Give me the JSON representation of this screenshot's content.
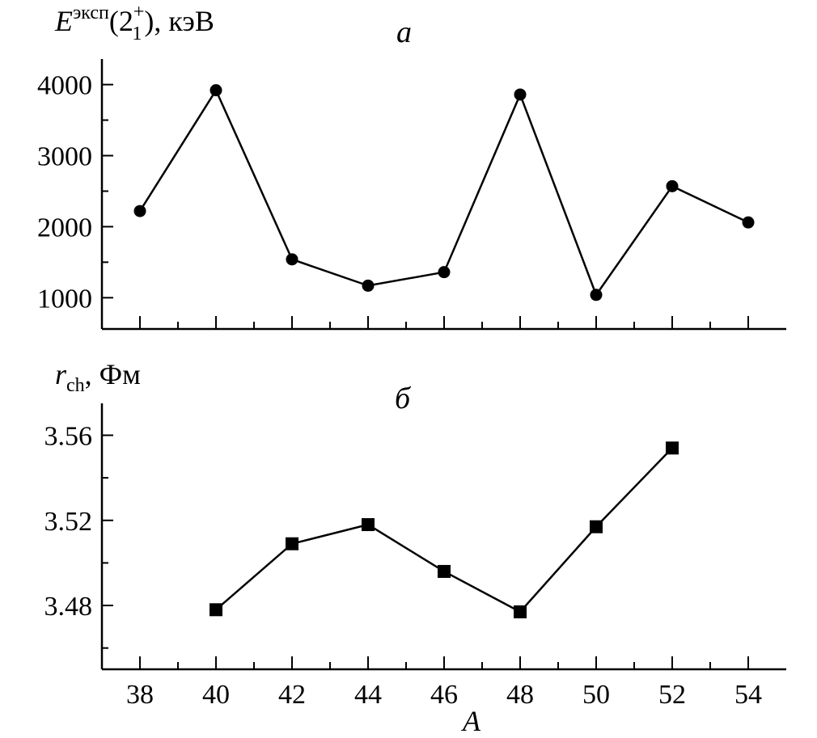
{
  "chart_data": [
    {
      "type": "line",
      "panel_label": "а",
      "ylabel": {
        "base": "E",
        "sup": "эксп",
        "paren_open": "(2",
        "level_sup": "+",
        "level_sub": "1",
        "paren_close": "),",
        "unit": " кэВ"
      },
      "x": [
        38,
        40,
        42,
        44,
        46,
        48,
        50,
        52,
        54
      ],
      "series": [
        {
          "marker": "circle",
          "values": [
            2220,
            3920,
            1540,
            1170,
            1360,
            3860,
            1040,
            2570,
            2060
          ]
        }
      ],
      "xlim": [
        37,
        55
      ],
      "ylim": [
        560,
        4360
      ],
      "yticks": [
        1000,
        2000,
        3000,
        4000
      ],
      "yminor": [
        1500,
        2500,
        3500
      ],
      "xticks": [
        38,
        40,
        42,
        44,
        46,
        48,
        50,
        52,
        54
      ],
      "xminor": [
        39,
        41,
        43,
        45,
        47,
        49,
        51,
        53
      ],
      "show_tick_labels_x": false,
      "grid": false
    },
    {
      "type": "line",
      "panel_label": "б",
      "ylabel": {
        "base": "r",
        "sub": "ch",
        "unit": ", Фм"
      },
      "x": [
        40,
        42,
        44,
        46,
        48,
        50,
        52
      ],
      "series": [
        {
          "marker": "square",
          "values": [
            3.478,
            3.509,
            3.518,
            3.496,
            3.477,
            3.517,
            3.554
          ]
        }
      ],
      "xlim": [
        37,
        55
      ],
      "ylim": [
        3.45,
        3.575
      ],
      "yticks": [
        "3.48",
        "3.52",
        "3.56"
      ],
      "yminor": [
        3.46,
        3.5,
        3.54
      ],
      "xticks": [
        "38",
        "40",
        "42",
        "44",
        "46",
        "48",
        "50",
        "52",
        "54"
      ],
      "xminor": [
        39,
        41,
        43,
        45,
        47,
        49,
        51,
        53
      ],
      "xlabel": "A",
      "show_tick_labels_x": true,
      "grid": false
    }
  ]
}
